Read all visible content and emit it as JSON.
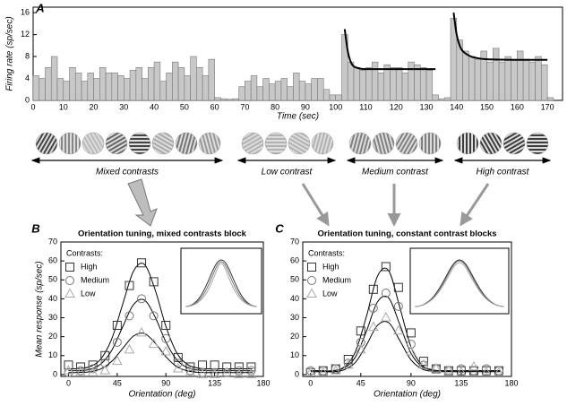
{
  "chart_data": [
    {
      "type": "histogram",
      "panel": "A",
      "xlabel": "Time (sec)",
      "ylabel": "Firing rate (sp/sec)",
      "color": "#c8c8c8",
      "xlim": [
        0,
        175
      ],
      "xticks": [
        0,
        10,
        20,
        30,
        40,
        50,
        60,
        70,
        80,
        90,
        100,
        110,
        120,
        130,
        140,
        150,
        160,
        170
      ],
      "ylim": [
        0,
        17
      ],
      "yticks": [
        0,
        4,
        8,
        12,
        16
      ],
      "bins": [
        0,
        2,
        4,
        6,
        8,
        10,
        12,
        14,
        16,
        18,
        20,
        22,
        24,
        26,
        28,
        30,
        32,
        34,
        36,
        38,
        40,
        42,
        44,
        46,
        48,
        50,
        52,
        54,
        56,
        58,
        60,
        62,
        64,
        66,
        68,
        70,
        72,
        74,
        76,
        78,
        80,
        82,
        84,
        86,
        88,
        90,
        92,
        94,
        96,
        98,
        100,
        102,
        104,
        106,
        108,
        110,
        112,
        114,
        116,
        118,
        120,
        122,
        124,
        126,
        128,
        130,
        132,
        134,
        136,
        138,
        140,
        142,
        144,
        146,
        148,
        150,
        152,
        154,
        156,
        158,
        160,
        162,
        164,
        166,
        168,
        170,
        172
      ],
      "values": [
        4.5,
        4,
        6,
        8,
        4,
        3.5,
        6,
        5,
        3.5,
        5,
        4,
        6,
        5,
        5,
        4.5,
        4,
        5.5,
        6,
        4,
        6,
        7,
        3.5,
        5,
        7,
        6,
        4.5,
        8,
        6,
        4.5,
        7.5,
        0.5,
        0.3,
        0.2,
        0.3,
        2.5,
        3.5,
        4.5,
        2.5,
        4,
        3,
        3.5,
        4,
        2.5,
        5,
        3.5,
        3,
        4,
        4,
        2,
        1,
        1,
        12,
        7,
        6,
        5.5,
        6,
        7,
        5,
        6.5,
        6,
        6,
        5,
        7,
        6.5,
        6,
        5.5,
        1,
        0.3,
        0.5,
        15,
        11,
        9,
        8,
        7.5,
        9,
        7,
        9.5,
        7,
        8,
        7.5,
        9,
        7.5,
        7,
        8,
        6.5,
        0.5
      ],
      "fits": [
        {
          "color": "#000000",
          "x": [
            103,
            104,
            105,
            106,
            108,
            110,
            115,
            133
          ],
          "values": [
            13,
            9,
            7,
            6.2,
            5.8,
            5.7,
            5.7,
            5.7
          ]
        },
        {
          "color": "#000000",
          "x": [
            139,
            140,
            141,
            142,
            144,
            146,
            150,
            160,
            170
          ],
          "values": [
            16,
            12,
            10,
            9,
            8.2,
            7.8,
            7.5,
            7.4,
            7.4
          ]
        }
      ]
    },
    {
      "type": "line",
      "panel": "B",
      "title": "Orientation tuning, mixed contrasts block",
      "xlabel": "Orientation (deg)",
      "ylabel": "Mean response (sp/sec)",
      "legend_title": "Contrasts:",
      "legend": "upper left",
      "xlim": [
        -7,
        180
      ],
      "xticks": [
        0,
        45,
        90,
        135,
        180
      ],
      "ylim": [
        -1,
        70
      ],
      "yticks": [
        0,
        10,
        20,
        30,
        40,
        50,
        60,
        70
      ],
      "x": [
        0,
        11.25,
        22.5,
        33.75,
        45,
        56.25,
        67.5,
        78.75,
        90,
        101.25,
        112.5,
        123.75,
        135,
        146.25,
        157.5,
        168.75
      ],
      "fit_x": [
        0,
        10,
        20,
        30,
        40,
        50,
        60,
        70,
        80,
        90,
        100,
        110,
        120,
        130,
        140,
        150,
        160,
        170
      ],
      "series": [
        {
          "name": "High",
          "marker": "square",
          "color": "#333333",
          "values": [
            5,
            4,
            5,
            10,
            26,
            47,
            59,
            49,
            26,
            9,
            4,
            5,
            5,
            4,
            4,
            4
          ],
          "fit": [
            3,
            3.2,
            4.2,
            8.3,
            18.9,
            37,
            54.5,
            58.2,
            44.8,
            25.4,
            11.5,
            5.3,
            3.4,
            3,
            3,
            3,
            3,
            3
          ]
        },
        {
          "name": "Medium",
          "marker": "circle",
          "color": "#777777",
          "values": [
            1,
            2,
            3,
            6,
            17,
            31,
            40,
            31,
            19,
            6,
            2,
            1,
            1,
            1,
            2,
            2
          ],
          "fit": [
            2,
            2.1,
            2.8,
            5.6,
            12.8,
            25.1,
            36.9,
            39.4,
            30.4,
            17.2,
            7.8,
            3.6,
            2.3,
            2,
            2,
            2,
            2,
            2
          ]
        },
        {
          "name": "Low",
          "marker": "triangle",
          "color": "#aaaaaa",
          "values": [
            2,
            1,
            1,
            2,
            7,
            13,
            22,
            16,
            12,
            3,
            1,
            0,
            0,
            1,
            0,
            0
          ],
          "fit": [
            1,
            1.1,
            1.5,
            3,
            7,
            13.7,
            20.3,
            21.7,
            16.7,
            9.4,
            4.2,
            1.9,
            1.2,
            1,
            1,
            1,
            1,
            1
          ]
        }
      ]
    },
    {
      "type": "line",
      "panel": "C",
      "title": "Orientation tuning, constant contrast blocks",
      "xlabel": "Orientation (deg)",
      "legend_title": "Contrasts:",
      "legend": "upper left",
      "xlim": [
        -7,
        180
      ],
      "xticks": [
        0,
        45,
        90,
        135,
        180
      ],
      "ylim": [
        -1,
        70
      ],
      "yticks": [
        0,
        10,
        20,
        30,
        40,
        50,
        60,
        70
      ],
      "x": [
        0,
        11.25,
        22.5,
        33.75,
        45,
        56.25,
        67.5,
        78.75,
        90,
        101.25,
        112.5,
        123.75,
        135,
        146.25,
        157.5,
        168.75
      ],
      "fit_x": [
        0,
        10,
        20,
        30,
        40,
        50,
        60,
        70,
        80,
        90,
        100,
        110,
        120,
        130,
        140,
        150,
        160,
        170
      ],
      "series": [
        {
          "name": "High",
          "marker": "square",
          "color": "#333333",
          "values": [
            1,
            2,
            3,
            8,
            23,
            45,
            57,
            46,
            22,
            7,
            3,
            2,
            2,
            2,
            2,
            2
          ],
          "fit": [
            2,
            2,
            2,
            4,
            11.8,
            30.6,
            52,
            54.8,
            35.4,
            14.6,
            4.9,
            2.4,
            2,
            2,
            2,
            2,
            2,
            2
          ]
        },
        {
          "name": "Medium",
          "marker": "circle",
          "color": "#777777",
          "values": [
            2,
            2,
            3,
            6,
            17,
            35,
            43,
            36,
            16,
            5,
            3,
            2,
            3,
            2,
            3,
            2
          ],
          "fit": [
            2,
            2,
            2,
            3.5,
            9.1,
            22.8,
            38.4,
            40.4,
            26.3,
            11.2,
            4.1,
            2.3,
            2,
            2,
            2,
            2,
            2,
            2
          ]
        },
        {
          "name": "Low",
          "marker": "triangle",
          "color": "#aaaaaa",
          "values": [
            1,
            1,
            2,
            5,
            13,
            25,
            30,
            23,
            12,
            5,
            3,
            2,
            1,
            4,
            1,
            1
          ],
          "fit": [
            1.5,
            1.5,
            1.5,
            2.5,
            6.3,
            15.5,
            26,
            27.4,
            17.9,
            7.7,
            2.9,
            1.7,
            1.5,
            1.5,
            1.5,
            1.5,
            1.5,
            1.5
          ]
        }
      ]
    }
  ],
  "stimulus": {
    "blocks": [
      {
        "label": "Mixed contrasts"
      },
      {
        "label": "Low contrast"
      },
      {
        "label": "Medium contrast"
      },
      {
        "label": "High contrast"
      }
    ]
  }
}
